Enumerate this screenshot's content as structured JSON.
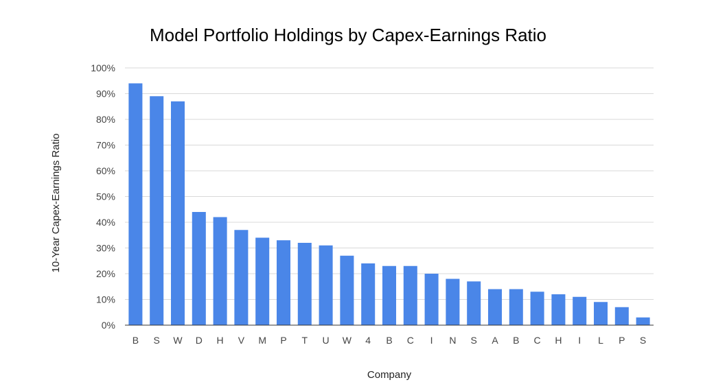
{
  "chart_data": {
    "type": "bar",
    "title": "Model Portfolio Holdings by Capex-Earnings Ratio",
    "xlabel": "Company",
    "ylabel": "10-Year Capex-Earnings Ratio",
    "ylim": [
      0,
      100
    ],
    "y_unit": "%",
    "y_ticks": [
      "0%",
      "10%",
      "20%",
      "30%",
      "40%",
      "50%",
      "60%",
      "70%",
      "80%",
      "90%",
      "100%"
    ],
    "grid": true,
    "legend": "none",
    "bar_color": "#4a86e8",
    "categories": [
      "B",
      "S",
      "W",
      "D",
      "H",
      "V",
      "M",
      "P",
      "T",
      "U",
      "W",
      "4",
      "B",
      "C",
      "I",
      "N",
      "S",
      "A",
      "B",
      "C",
      "H",
      "I",
      "L",
      "P",
      "S"
    ],
    "values": [
      94,
      89,
      87,
      44,
      42,
      37,
      34,
      33,
      32,
      31,
      27,
      24,
      23,
      23,
      20,
      18,
      17,
      14,
      14,
      13,
      12,
      11,
      9,
      7,
      3
    ]
  }
}
